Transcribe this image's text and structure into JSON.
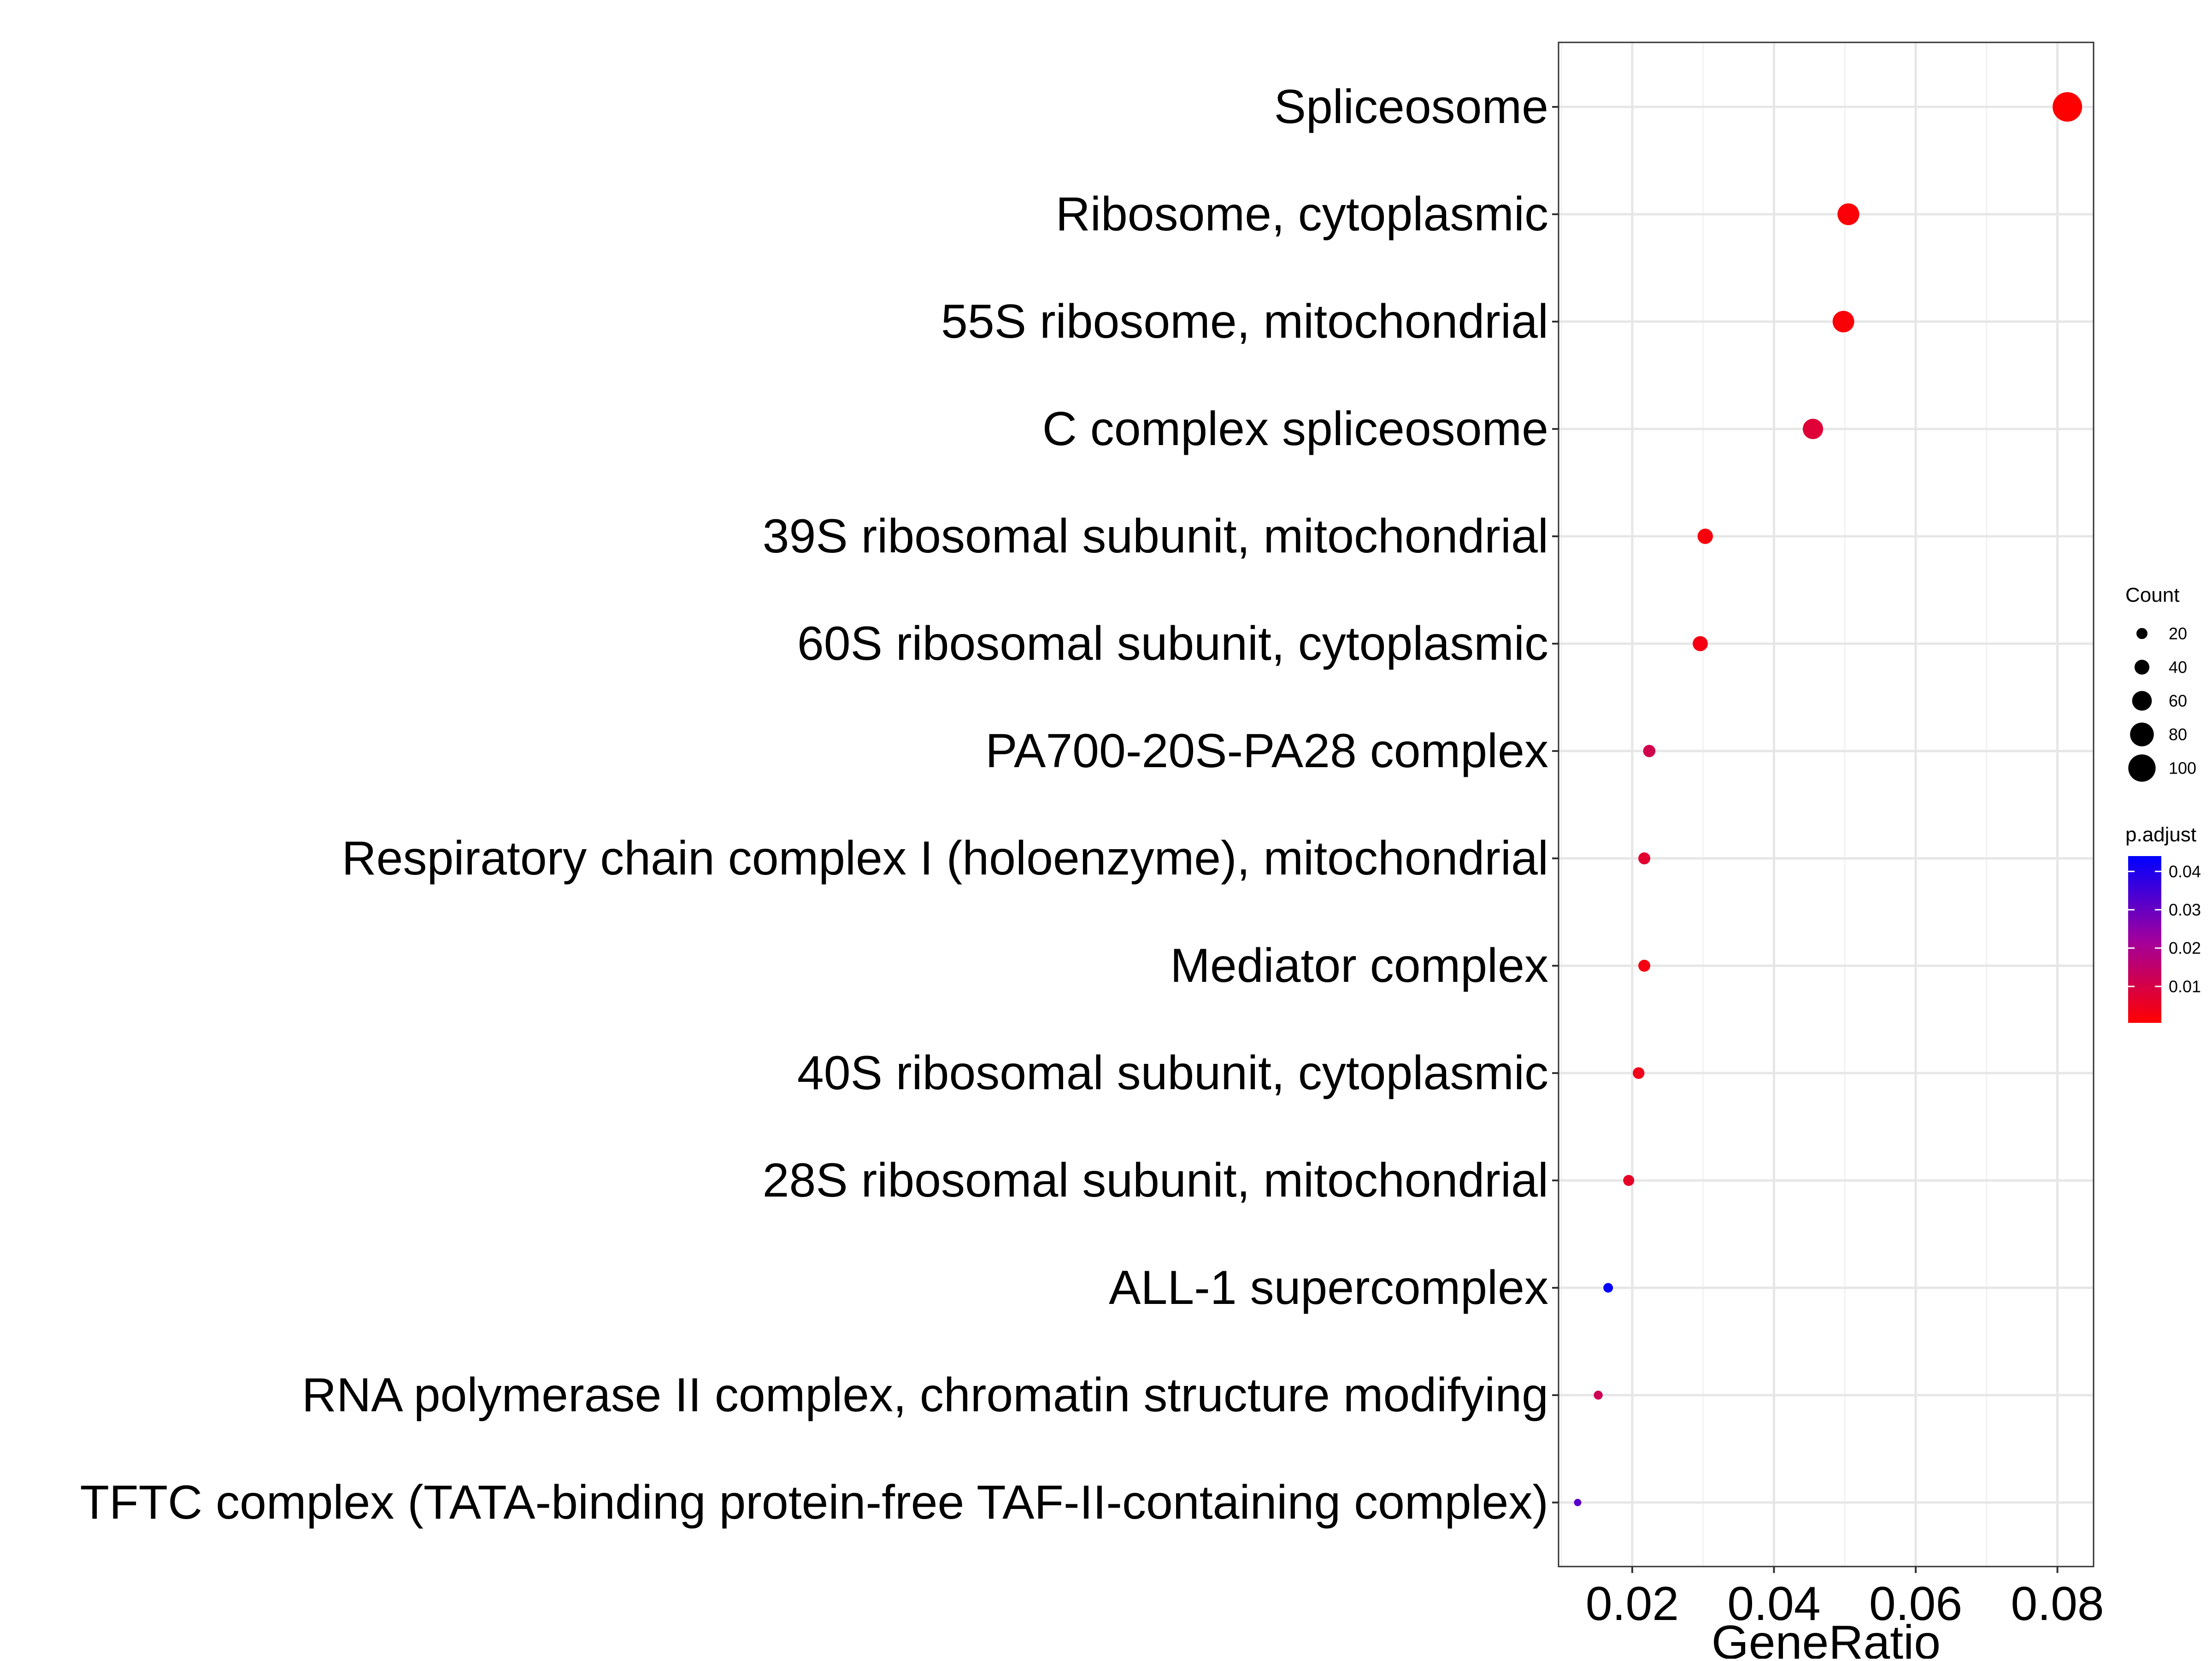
{
  "chart_data": {
    "type": "scatter",
    "title": "",
    "xlabel": "GeneRatio",
    "ylabel": "",
    "xlim": [
      0.0096,
      0.0851
    ],
    "x_ticks": [
      0.02,
      0.04,
      0.06,
      0.08
    ],
    "x_tick_labels": [
      "0.02",
      "0.04",
      "0.06",
      "0.08"
    ],
    "grid": true,
    "categories": [
      "Spliceosome",
      "Ribosome, cytoplasmic",
      "55S ribosome, mitochondrial",
      "C complex spliceosome",
      "39S ribosomal subunit, mitochondrial",
      "60S ribosomal subunit, cytoplasmic",
      "PA700-20S-PA28 complex",
      "Respiratory chain complex I (holoenzyme), mitochondrial",
      "Mediator complex",
      "40S ribosomal subunit, cytoplasmic",
      "28S ribosomal subunit, mitochondrial",
      "ALL-1 supercomplex",
      "RNA polymerase II complex, chromatin structure modifying",
      "TFTC complex (TATA-binding protein-free TAF-II-containing complex)"
    ],
    "points": [
      {
        "term": "Spliceosome",
        "gene_ratio": 0.0814,
        "count": 113,
        "p_adjust": 0.0005
      },
      {
        "term": "Ribosome, cytoplasmic",
        "gene_ratio": 0.0505,
        "count": 70,
        "p_adjust": 0.0015
      },
      {
        "term": "55S ribosome, mitochondrial",
        "gene_ratio": 0.0498,
        "count": 69,
        "p_adjust": 0.0015
      },
      {
        "term": "C complex spliceosome",
        "gene_ratio": 0.0455,
        "count": 63,
        "p_adjust": 0.008
      },
      {
        "term": "39S ribosomal subunit, mitochondrial",
        "gene_ratio": 0.0303,
        "count": 42,
        "p_adjust": 0.002
      },
      {
        "term": "60S ribosomal subunit, cytoplasmic",
        "gene_ratio": 0.0296,
        "count": 41,
        "p_adjust": 0.003
      },
      {
        "term": "PA700-20S-PA28 complex",
        "gene_ratio": 0.0224,
        "count": 31,
        "p_adjust": 0.011
      },
      {
        "term": "Respiratory chain complex I (holoenzyme), mitochondrial",
        "gene_ratio": 0.0217,
        "count": 30,
        "p_adjust": 0.007
      },
      {
        "term": "Mediator complex",
        "gene_ratio": 0.0217,
        "count": 30,
        "p_adjust": 0.003
      },
      {
        "term": "40S ribosomal subunit, cytoplasmic",
        "gene_ratio": 0.0209,
        "count": 29,
        "p_adjust": 0.004
      },
      {
        "term": "28S ribosomal subunit, mitochondrial",
        "gene_ratio": 0.0195,
        "count": 27,
        "p_adjust": 0.006
      },
      {
        "term": "ALL-1 supercomplex",
        "gene_ratio": 0.0166,
        "count": 23,
        "p_adjust": 0.044
      },
      {
        "term": "RNA polymerase II complex, chromatin structure modifying",
        "gene_ratio": 0.0152,
        "count": 21,
        "p_adjust": 0.012
      },
      {
        "term": "TFTC complex (TATA-binding protein-free TAF-II-containing complex)",
        "gene_ratio": 0.0123,
        "count": 17,
        "p_adjust": 0.032
      }
    ],
    "legend": {
      "placement": "right",
      "size_title": "Count",
      "size_breaks": [
        20,
        40,
        60,
        80,
        100
      ],
      "size_labels": [
        "20",
        "40",
        "60",
        "80",
        "100"
      ],
      "color_title": "p.adjust",
      "color_breaks": [
        0.04,
        0.03,
        0.02,
        0.01
      ],
      "color_labels": [
        "0.04",
        "0.03",
        "0.02",
        "0.01"
      ],
      "color_range": [
        0.0005,
        0.044
      ],
      "color_low": "#ff0000",
      "color_high": "#0000ff"
    }
  }
}
